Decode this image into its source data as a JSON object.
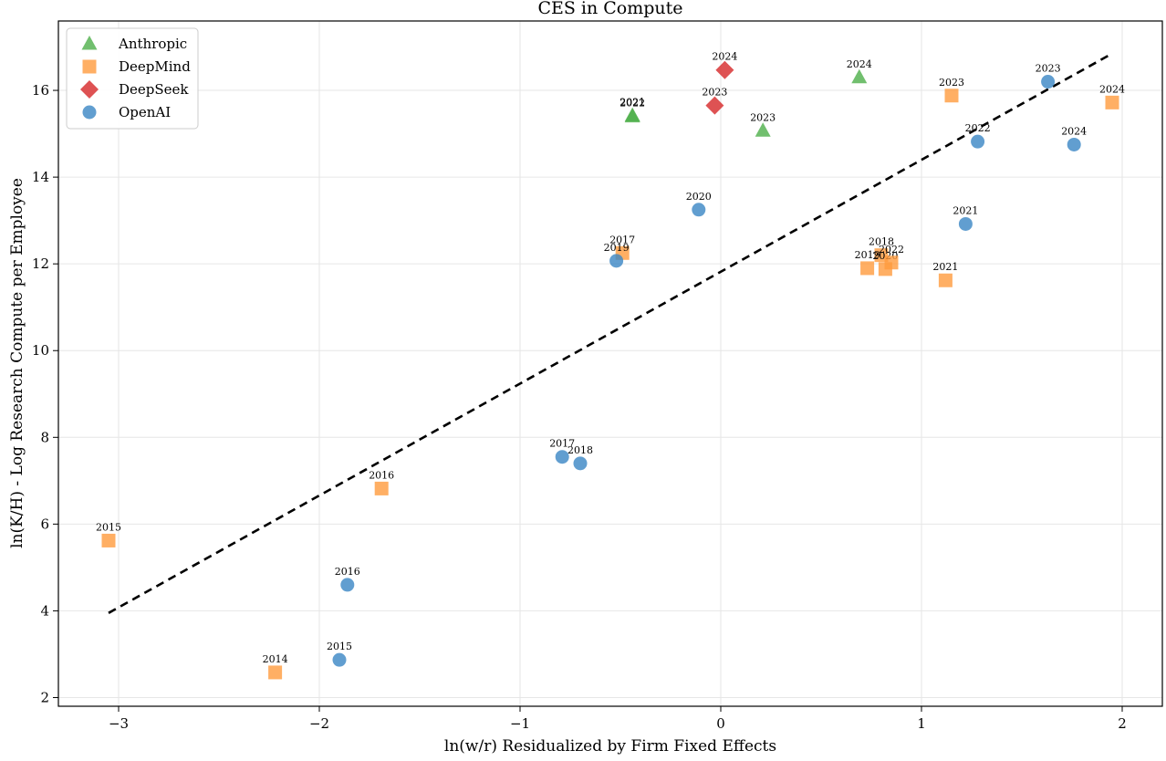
{
  "chart_data": {
    "type": "scatter",
    "title": "CES in Compute",
    "xlabel": "ln(w/r) Residualized by Firm Fixed Effects",
    "ylabel": "ln(K/H) - Log Research Compute per Employee",
    "xlim": [
      -3.3,
      2.2
    ],
    "ylim": [
      1.8,
      17.6
    ],
    "xticks": [
      -3,
      -2,
      -1,
      0,
      1,
      2
    ],
    "yticks": [
      2,
      4,
      6,
      8,
      10,
      12,
      14,
      16
    ],
    "xtick_labels": [
      "−3",
      "−2",
      "−1",
      "0",
      "1",
      "2"
    ],
    "ytick_labels": [
      "2",
      "4",
      "6",
      "8",
      "10",
      "12",
      "14",
      "16"
    ],
    "grid": true,
    "legend_position": "top-left",
    "fit_line": {
      "style": "dashed",
      "color": "#000000",
      "x": [
        -3.05,
        1.95
      ],
      "y": [
        3.95,
        16.85
      ]
    },
    "series": [
      {
        "name": "Anthropic",
        "marker": "triangle",
        "color": "#4daf4a",
        "points": [
          {
            "x": -0.44,
            "y": 15.42,
            "label": "2021"
          },
          {
            "x": -0.44,
            "y": 15.4,
            "label": "2022"
          },
          {
            "x": 0.21,
            "y": 15.07,
            "label": "2023"
          },
          {
            "x": 0.69,
            "y": 16.3,
            "label": "2024"
          }
        ]
      },
      {
        "name": "DeepMind",
        "marker": "square",
        "color": "#ff9b3d",
        "points": [
          {
            "x": -2.22,
            "y": 2.58,
            "label": "2014"
          },
          {
            "x": -3.05,
            "y": 5.62,
            "label": "2015"
          },
          {
            "x": -1.69,
            "y": 6.82,
            "label": "2016"
          },
          {
            "x": -0.49,
            "y": 12.25,
            "label": "2017"
          },
          {
            "x": 0.8,
            "y": 12.2,
            "label": "2018"
          },
          {
            "x": 0.73,
            "y": 11.9,
            "label": "2019"
          },
          {
            "x": 0.82,
            "y": 11.88,
            "label": "2020"
          },
          {
            "x": 1.12,
            "y": 11.62,
            "label": "2021"
          },
          {
            "x": 0.85,
            "y": 12.03,
            "label": "2022"
          },
          {
            "x": 1.15,
            "y": 15.88,
            "label": "2023"
          },
          {
            "x": 1.95,
            "y": 15.72,
            "label": "2024"
          }
        ]
      },
      {
        "name": "DeepSeek",
        "marker": "diamond",
        "color": "#d62728",
        "points": [
          {
            "x": -0.03,
            "y": 15.65,
            "label": "2023"
          },
          {
            "x": 0.02,
            "y": 16.47,
            "label": "2024"
          }
        ]
      },
      {
        "name": "OpenAI",
        "marker": "circle",
        "color": "#3a86c4",
        "points": [
          {
            "x": -1.9,
            "y": 2.87,
            "label": "2015"
          },
          {
            "x": -1.86,
            "y": 4.6,
            "label": "2016"
          },
          {
            "x": -0.79,
            "y": 7.55,
            "label": "2017"
          },
          {
            "x": -0.7,
            "y": 7.4,
            "label": "2018"
          },
          {
            "x": -0.52,
            "y": 12.07,
            "label": "2019"
          },
          {
            "x": -0.11,
            "y": 13.25,
            "label": "2020"
          },
          {
            "x": 1.22,
            "y": 12.92,
            "label": "2021"
          },
          {
            "x": 1.28,
            "y": 14.82,
            "label": "2022"
          },
          {
            "x": 1.63,
            "y": 16.2,
            "label": "2023"
          },
          {
            "x": 1.76,
            "y": 14.75,
            "label": "2024"
          }
        ]
      }
    ]
  }
}
